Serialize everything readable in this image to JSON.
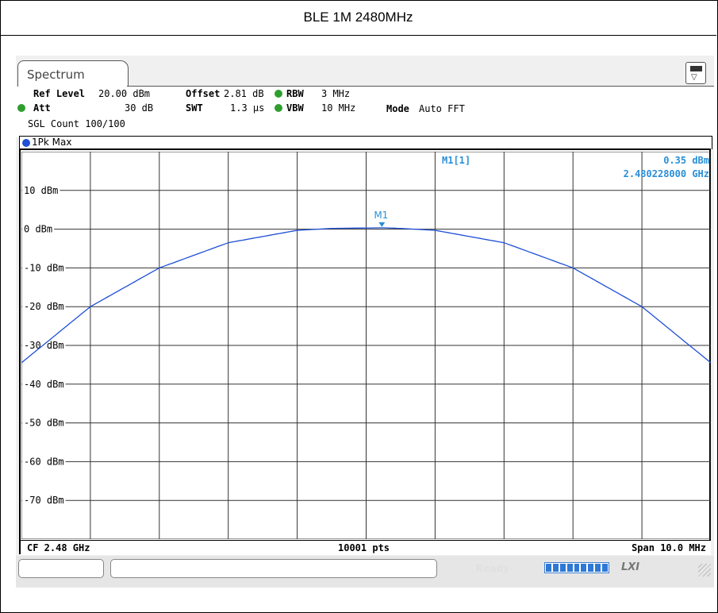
{
  "page_title": "BLE 1M 2480MHz",
  "tab": {
    "label": "Spectrum"
  },
  "settings": {
    "ref_level_label": "Ref Level",
    "ref_level_value": "20.00 dBm",
    "offset_label": "Offset",
    "offset_value": "2.81 dB",
    "rbw_label": "RBW",
    "rbw_value": "3 MHz",
    "att_label": "Att",
    "att_value": "30 dB",
    "swt_label": "SWT",
    "swt_value": "1.3 µs",
    "vbw_label": "VBW",
    "vbw_value": "10 MHz",
    "mode_label": "Mode",
    "mode_value": "Auto FFT",
    "sgl_count": "SGL Count 100/100"
  },
  "trace": {
    "label": "1Pk Max",
    "color": "#1e4fd6"
  },
  "marker": {
    "name": "M1",
    "readout_label": "M1[1]",
    "level": "0.35 dBm",
    "frequency": "2.480228000 GHz",
    "color": "#2a8fd8"
  },
  "axis": {
    "y_labels": [
      "10 dBm",
      "0 dBm",
      "-10 dBm",
      "-20 dBm",
      "-30 dBm",
      "-40 dBm",
      "-50 dBm",
      "-60 dBm",
      "-70 dBm"
    ],
    "cf": "CF 2.48 GHz",
    "points": "10001 pts",
    "span": "Span 10.0 MHz"
  },
  "status": {
    "ready": "Ready",
    "instrument_logo": "LXI"
  },
  "chart_data": {
    "type": "line",
    "x_unit": "MHz offset from CF",
    "xlim": [
      -5,
      5
    ],
    "ylim": [
      -80,
      20
    ],
    "y_ticks": [
      10,
      0,
      -10,
      -20,
      -30,
      -40,
      -50,
      -60,
      -70
    ],
    "grid": true,
    "series": [
      {
        "name": "1Pk Max",
        "x": [
          -5,
          -4,
          -3,
          -2,
          -1,
          -0.5,
          0,
          0.25,
          0.5,
          1,
          2,
          3,
          4,
          5
        ],
        "y": [
          -34.5,
          -20,
          -10,
          -3.5,
          -0.3,
          0.2,
          0.3,
          0.35,
          0.2,
          -0.3,
          -3.5,
          -10,
          -20,
          -34.5
        ]
      }
    ],
    "marker": {
      "x": 0.228,
      "y": 0.35
    }
  }
}
